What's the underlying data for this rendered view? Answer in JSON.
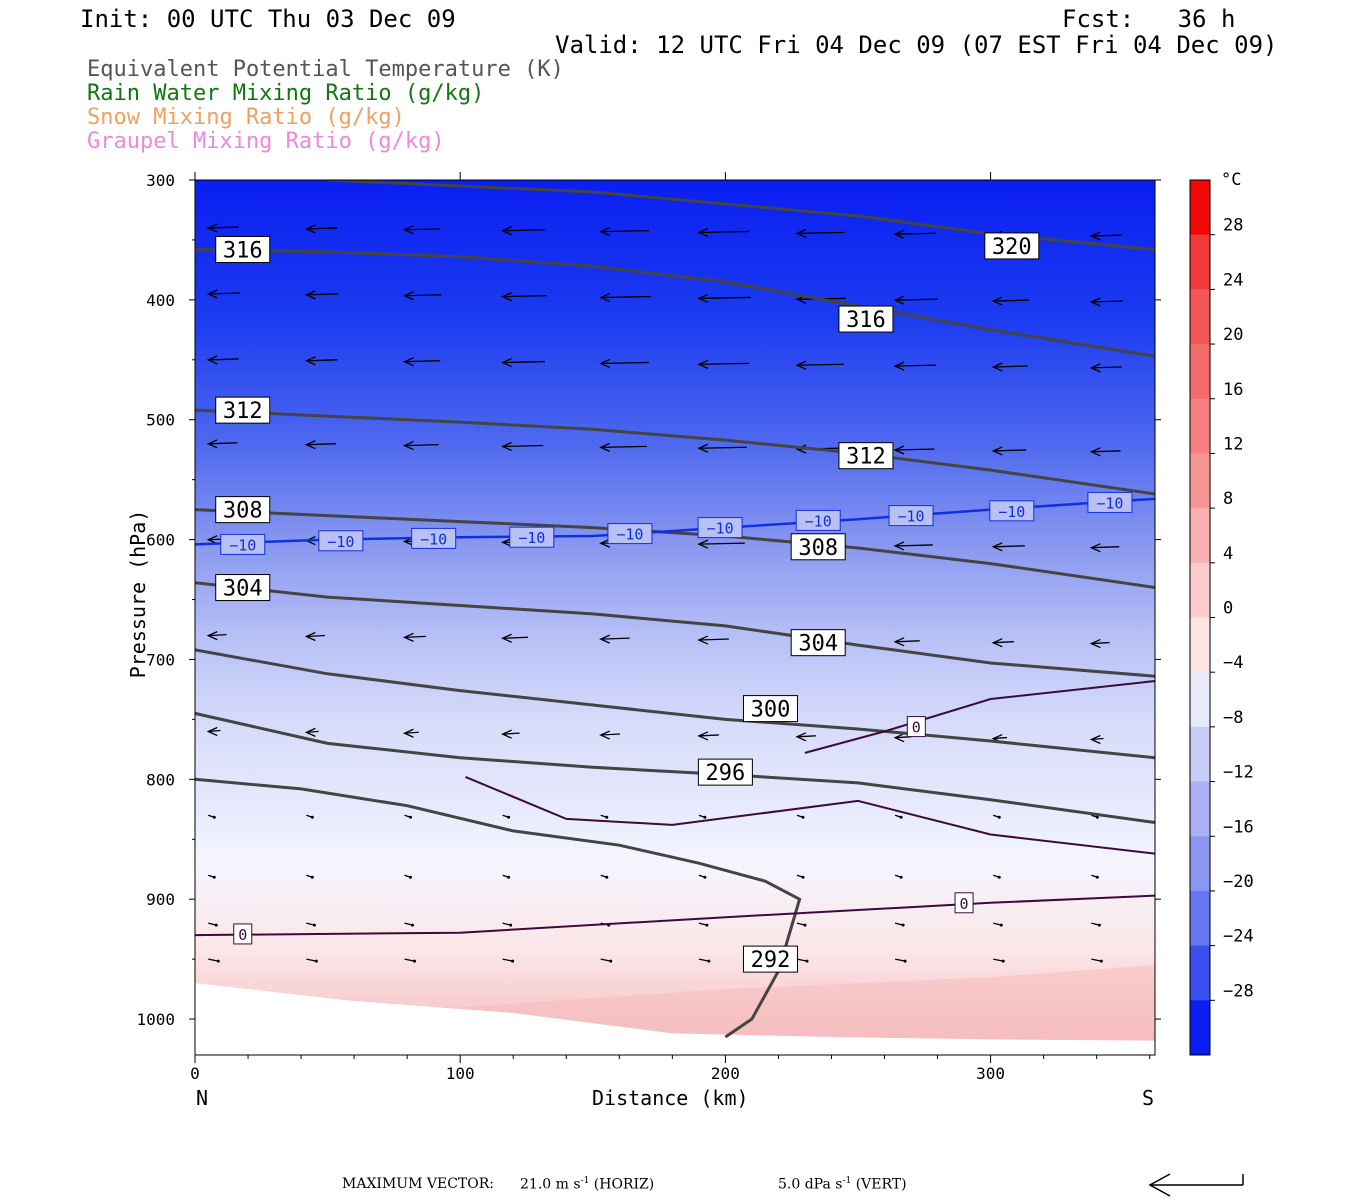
{
  "header": {
    "init": "Init: 00 UTC Thu 03 Dec 09",
    "fcst": "Fcst:   36 h",
    "valid": "Valid: 12 UTC Fri 04 Dec 09 (07 EST Fri 04 Dec 09)"
  },
  "legend": [
    {
      "label": "Equivalent Potential Temperature (K)",
      "color": "#555555"
    },
    {
      "label": "Rain Water Mixing Ratio (g/kg)",
      "color": "#117711"
    },
    {
      "label": "Snow Mixing Ratio (g/kg)",
      "color": "#f0a060"
    },
    {
      "label": "Graupel Mixing Ratio (g/kg)",
      "color": "#ee88dd"
    }
  ],
  "colorbar": {
    "unit": "°C",
    "ticks": [
      "28",
      "24",
      "20",
      "16",
      "12",
      "8",
      "4",
      "0",
      "−4",
      "−8",
      "−12",
      "−16",
      "−20",
      "−24",
      "−28"
    ]
  },
  "footer": {
    "max_vector_label": "MAXIMUM VECTOR:",
    "horiz_value": "21.0 m s",
    "horiz_exp": "-1",
    "horiz_unit": "(HORIZ)",
    "vert_value": "5.0 dPa s",
    "vert_exp": "-1",
    "vert_unit": "(VERT)"
  },
  "chart_data": {
    "type": "cross-section contour",
    "xlabel": "Distance (km)",
    "ylabel": "Pressure (hPa)",
    "x_ticks": [
      0,
      100,
      200,
      300
    ],
    "y_ticks": [
      300,
      400,
      500,
      600,
      700,
      800,
      900,
      1000
    ],
    "xlim": [
      0,
      362
    ],
    "ylim": [
      1030,
      300
    ],
    "x_end_labels": {
      "left": "N",
      "right": "S"
    },
    "fill_field": "Temperature (°C)",
    "fill_levels": [
      -28,
      -24,
      -20,
      -16,
      -12,
      -8,
      -4,
      0,
      4,
      8,
      12,
      16,
      20,
      24,
      28
    ],
    "theta_e_contours": [
      {
        "value": 320,
        "points": [
          [
            50,
            300
          ],
          [
            150,
            310
          ],
          [
            250,
            330
          ],
          [
            300,
            345
          ],
          [
            362,
            358
          ]
        ]
      },
      {
        "value": 316,
        "points": [
          [
            0,
            358
          ],
          [
            50,
            360
          ],
          [
            100,
            364
          ],
          [
            150,
            372
          ],
          [
            200,
            385
          ],
          [
            250,
            405
          ],
          [
            300,
            425
          ],
          [
            362,
            447
          ]
        ]
      },
      {
        "value": 312,
        "points": [
          [
            0,
            492
          ],
          [
            50,
            497
          ],
          [
            100,
            502
          ],
          [
            150,
            508
          ],
          [
            200,
            517
          ],
          [
            250,
            528
          ],
          [
            300,
            542
          ],
          [
            362,
            562
          ]
        ]
      },
      {
        "value": 308,
        "points": [
          [
            0,
            575
          ],
          [
            50,
            580
          ],
          [
            100,
            585
          ],
          [
            150,
            590
          ],
          [
            200,
            597
          ],
          [
            250,
            607
          ],
          [
            300,
            620
          ],
          [
            362,
            640
          ]
        ]
      },
      {
        "value": 304,
        "points": [
          [
            0,
            636
          ],
          [
            50,
            648
          ],
          [
            100,
            655
          ],
          [
            150,
            662
          ],
          [
            200,
            672
          ],
          [
            250,
            688
          ],
          [
            300,
            703
          ],
          [
            362,
            714
          ]
        ]
      },
      {
        "value": 300,
        "points": [
          [
            0,
            692
          ],
          [
            50,
            712
          ],
          [
            100,
            726
          ],
          [
            150,
            738
          ],
          [
            200,
            750
          ],
          [
            250,
            758
          ],
          [
            300,
            768
          ],
          [
            362,
            782
          ]
        ]
      },
      {
        "value": 296,
        "points": [
          [
            0,
            745
          ],
          [
            50,
            770
          ],
          [
            100,
            782
          ],
          [
            150,
            790
          ],
          [
            200,
            796
          ],
          [
            250,
            803
          ],
          [
            300,
            817
          ],
          [
            362,
            836
          ]
        ]
      },
      {
        "value": 292,
        "points": [
          [
            0,
            800
          ],
          [
            40,
            808
          ],
          [
            80,
            822
          ],
          [
            120,
            843
          ],
          [
            160,
            855
          ],
          [
            190,
            870
          ],
          [
            215,
            885
          ],
          [
            228,
            900
          ],
          [
            220,
            960
          ],
          [
            210,
            1000
          ],
          [
            200,
            1015
          ]
        ]
      }
    ],
    "temperature_contours": [
      {
        "value": -10,
        "points": [
          [
            0,
            604
          ],
          [
            50,
            600
          ],
          [
            100,
            598
          ],
          [
            150,
            597
          ],
          [
            200,
            590
          ],
          [
            250,
            583
          ],
          [
            300,
            575
          ],
          [
            362,
            566
          ]
        ]
      },
      {
        "value": 0,
        "points": [
          [
            102,
            798
          ],
          [
            140,
            833
          ],
          [
            180,
            838
          ],
          [
            250,
            818
          ],
          [
            300,
            846
          ],
          [
            362,
            862
          ]
        ]
      },
      {
        "value": 0,
        "points": [
          [
            230,
            778
          ],
          [
            260,
            760
          ],
          [
            300,
            733
          ],
          [
            362,
            718
          ]
        ]
      },
      {
        "value": 0,
        "points": [
          [
            0,
            930
          ],
          [
            100,
            928
          ],
          [
            200,
            915
          ],
          [
            300,
            903
          ],
          [
            362,
            897
          ]
        ]
      }
    ],
    "theta_e_labels": [
      {
        "value": "316",
        "x": 18,
        "p": 358
      },
      {
        "value": "320",
        "x": 308,
        "p": 355
      },
      {
        "value": "316",
        "x": 253,
        "p": 416
      },
      {
        "value": "312",
        "x": 18,
        "p": 492
      },
      {
        "value": "312",
        "x": 253,
        "p": 530
      },
      {
        "value": "308",
        "x": 18,
        "p": 575
      },
      {
        "value": "308",
        "x": 235,
        "p": 606
      },
      {
        "value": "304",
        "x": 18,
        "p": 640
      },
      {
        "value": "304",
        "x": 235,
        "p": 686
      },
      {
        "value": "300",
        "x": 217,
        "p": 741
      },
      {
        "value": "296",
        "x": 200,
        "p": 794
      },
      {
        "value": "292",
        "x": 217,
        "p": 950
      }
    ],
    "temperature_labels": [
      {
        "value": "−10",
        "x": 18,
        "p": 604
      },
      {
        "value": "−10",
        "x": 55,
        "p": 601
      },
      {
        "value": "−10",
        "x": 90,
        "p": 599
      },
      {
        "value": "−10",
        "x": 127,
        "p": 598
      },
      {
        "value": "−10",
        "x": 164,
        "p": 595
      },
      {
        "value": "−10",
        "x": 198,
        "p": 590
      },
      {
        "value": "−10",
        "x": 235,
        "p": 584
      },
      {
        "value": "−10",
        "x": 270,
        "p": 580
      },
      {
        "value": "−10",
        "x": 308,
        "p": 576
      },
      {
        "value": "−10",
        "x": 345,
        "p": 569
      },
      {
        "value": "0",
        "x": 272,
        "p": 756
      },
      {
        "value": "0",
        "x": 290,
        "p": 903
      },
      {
        "value": "0",
        "x": 18,
        "p": 929
      }
    ]
  }
}
